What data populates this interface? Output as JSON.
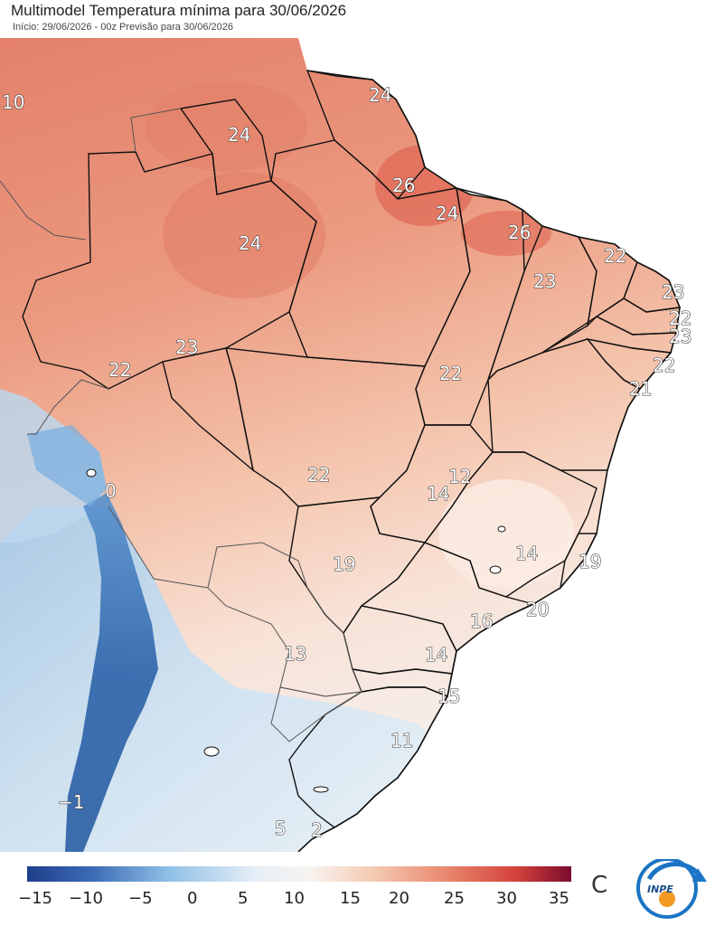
{
  "header": {
    "title": "Multimodel Temperatura mínima para 30/06/2026",
    "subtitle": "Início: 29/06/2026 - 00z  Previsão para 30/06/2026"
  },
  "map": {
    "labels": [
      {
        "id": "v10",
        "text": "10"
      },
      {
        "id": "v24a",
        "text": "24"
      },
      {
        "id": "v24b",
        "text": "24"
      },
      {
        "id": "v26a",
        "text": "26"
      },
      {
        "id": "v24c",
        "text": "24"
      },
      {
        "id": "v24d",
        "text": "24"
      },
      {
        "id": "v26b",
        "text": "26"
      },
      {
        "id": "v22a",
        "text": "22"
      },
      {
        "id": "v23a",
        "text": "23"
      },
      {
        "id": "v23b",
        "text": "23"
      },
      {
        "id": "v22b",
        "text": "22"
      },
      {
        "id": "v23c",
        "text": "23"
      },
      {
        "id": "v22c",
        "text": "22"
      },
      {
        "id": "v23d",
        "text": "23"
      },
      {
        "id": "v22d",
        "text": "22"
      },
      {
        "id": "v21",
        "text": "21"
      },
      {
        "id": "v22e",
        "text": "22"
      },
      {
        "id": "v0",
        "text": "0"
      },
      {
        "id": "v12",
        "text": "12"
      },
      {
        "id": "v14a",
        "text": "14"
      },
      {
        "id": "v22f",
        "text": "22"
      },
      {
        "id": "v14b",
        "text": "14"
      },
      {
        "id": "v19a",
        "text": "19"
      },
      {
        "id": "v19b",
        "text": "19"
      },
      {
        "id": "v20",
        "text": "20"
      },
      {
        "id": "v16",
        "text": "16"
      },
      {
        "id": "v13",
        "text": "13"
      },
      {
        "id": "v14c",
        "text": "14"
      },
      {
        "id": "v15",
        "text": "15"
      },
      {
        "id": "v11",
        "text": "11"
      },
      {
        "id": "vm1",
        "text": "−1"
      },
      {
        "id": "v5",
        "text": "5"
      },
      {
        "id": "v2",
        "text": "2"
      }
    ]
  },
  "colorbar": {
    "ticks": [
      "−15",
      "−10",
      "−5",
      "0",
      "5",
      "10",
      "15",
      "20",
      "25",
      "30",
      "35"
    ],
    "unit": "C",
    "range": [
      -17,
      36
    ],
    "colors": {
      "cold": "#1f3f8a",
      "cool": "#8fc0e6",
      "neutral": "#f7f4f0",
      "warm": "#f0a080",
      "hot": "#d4413a",
      "extreme": "#7a0c2e"
    }
  },
  "logo": {
    "text": "INPE"
  }
}
